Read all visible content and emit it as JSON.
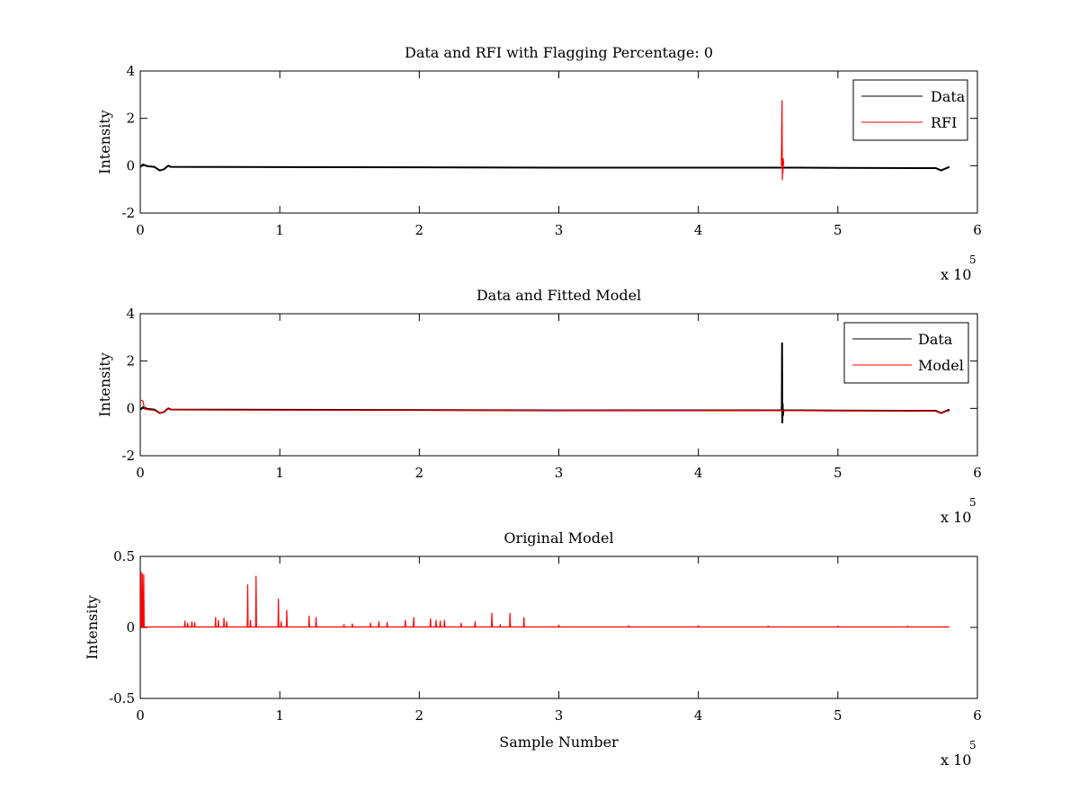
{
  "chart_data": [
    {
      "type": "line",
      "title": "Data and RFI with Flagging Percentage: 0",
      "xlabel": "",
      "ylabel": "Intensity",
      "xlim": [
        0,
        600000
      ],
      "ylim": [
        -2,
        4
      ],
      "x_ticks": [
        0,
        1,
        2,
        3,
        4,
        5,
        6
      ],
      "y_ticks": [
        -2,
        0,
        2,
        4
      ],
      "x_multiplier_text": "x 10",
      "x_multiplier_exponent": "5",
      "grid": false,
      "legend_position": "top-right",
      "series": [
        {
          "name": "Data",
          "color": "#000000",
          "x": [
            0,
            2000,
            5000,
            10000,
            14000,
            17000,
            20000,
            22000,
            100000,
            200000,
            300000,
            400000,
            460000,
            460500,
            461000,
            500000,
            560000,
            570000,
            574000,
            578000,
            580000
          ],
          "y": [
            -0.05,
            0.05,
            -0.02,
            -0.05,
            -0.2,
            -0.15,
            0.0,
            -0.05,
            -0.06,
            -0.07,
            -0.08,
            -0.08,
            -0.08,
            -0.08,
            -0.08,
            -0.09,
            -0.1,
            -0.1,
            -0.2,
            -0.1,
            -0.05
          ]
        },
        {
          "name": "RFI",
          "color": "#ff0000",
          "x": [
            459500,
            460000,
            460200,
            460400,
            460600,
            460800,
            461200
          ],
          "y": [
            0,
            2.75,
            -0.6,
            0.2,
            -0.3,
            0.3,
            0
          ]
        }
      ]
    },
    {
      "type": "line",
      "title": "Data and Fitted Model",
      "xlabel": "",
      "ylabel": "Intensity",
      "xlim": [
        0,
        600000
      ],
      "ylim": [
        -2,
        4
      ],
      "x_ticks": [
        0,
        1,
        2,
        3,
        4,
        5,
        6
      ],
      "y_ticks": [
        -2,
        0,
        2,
        4
      ],
      "x_multiplier_text": "x 10",
      "x_multiplier_exponent": "5",
      "grid": false,
      "legend_position": "top-right",
      "series": [
        {
          "name": "Data",
          "color": "#000000",
          "x": [
            0,
            2000,
            5000,
            10000,
            14000,
            17000,
            20000,
            22000,
            100000,
            200000,
            300000,
            400000,
            459800,
            460000,
            460200,
            460400,
            460600,
            461000,
            500000,
            560000,
            570000,
            574000,
            578000,
            580000
          ],
          "y": [
            -0.05,
            0.05,
            -0.02,
            -0.05,
            -0.2,
            -0.15,
            0.0,
            -0.05,
            -0.06,
            -0.07,
            -0.08,
            -0.08,
            -0.08,
            2.75,
            -0.6,
            0.2,
            -0.3,
            -0.08,
            -0.09,
            -0.1,
            -0.1,
            -0.2,
            -0.1,
            -0.05
          ]
        },
        {
          "name": "Model",
          "color": "#ff0000",
          "x": [
            0,
            500,
            2000,
            3000,
            5000,
            10000,
            14000,
            17000,
            20000,
            22000,
            100000,
            200000,
            300000,
            400000,
            500000,
            560000,
            570000,
            574000,
            578000,
            580000
          ],
          "y": [
            0.35,
            0.35,
            0.3,
            -0.02,
            -0.05,
            -0.08,
            -0.2,
            -0.15,
            -0.02,
            -0.06,
            -0.07,
            -0.07,
            -0.08,
            -0.09,
            -0.1,
            -0.11,
            -0.12,
            -0.2,
            -0.12,
            -0.1
          ]
        }
      ]
    },
    {
      "type": "line",
      "title": "Original Model",
      "xlabel": "Sample Number",
      "ylabel": "Intensity",
      "xlim": [
        0,
        600000
      ],
      "ylim": [
        -0.5,
        0.5
      ],
      "x_ticks": [
        0,
        1,
        2,
        3,
        4,
        5,
        6
      ],
      "y_ticks": [
        -0.5,
        0,
        0.5
      ],
      "x_multiplier_text": "x 10",
      "x_multiplier_exponent": "5",
      "grid": false,
      "legend_position": "none",
      "series": [
        {
          "name": "",
          "color": "#ff0000",
          "baseline": 0.003,
          "x_end": 580000,
          "spikes": [
            [
              500,
              0.39
            ],
            [
              1500,
              0.38
            ],
            [
              2500,
              0.37
            ],
            [
              32000,
              0.045
            ],
            [
              34000,
              0.03
            ],
            [
              37000,
              0.04
            ],
            [
              39000,
              0.035
            ],
            [
              54000,
              0.07
            ],
            [
              56000,
              0.05
            ],
            [
              60000,
              0.065
            ],
            [
              62000,
              0.04
            ],
            [
              77000,
              0.3
            ],
            [
              79000,
              0.05
            ],
            [
              83000,
              0.36
            ],
            [
              99000,
              0.2
            ],
            [
              101000,
              0.04
            ],
            [
              105000,
              0.12
            ],
            [
              121000,
              0.08
            ],
            [
              126000,
              0.07
            ],
            [
              146000,
              0.02
            ],
            [
              152000,
              0.025
            ],
            [
              165000,
              0.03
            ],
            [
              171000,
              0.04
            ],
            [
              177000,
              0.035
            ],
            [
              190000,
              0.05
            ],
            [
              196000,
              0.07
            ],
            [
              208000,
              0.06
            ],
            [
              212000,
              0.05
            ],
            [
              215000,
              0.045
            ],
            [
              218000,
              0.05
            ],
            [
              230000,
              0.03
            ],
            [
              240000,
              0.04
            ],
            [
              252000,
              0.1
            ],
            [
              258000,
              0.02
            ],
            [
              265000,
              0.1
            ],
            [
              275000,
              0.07
            ],
            [
              300000,
              0.015
            ],
            [
              350000,
              0.012
            ],
            [
              400000,
              0.012
            ],
            [
              450000,
              0.01
            ],
            [
              500000,
              0.01
            ],
            [
              550000,
              0.01
            ]
          ]
        }
      ]
    }
  ]
}
